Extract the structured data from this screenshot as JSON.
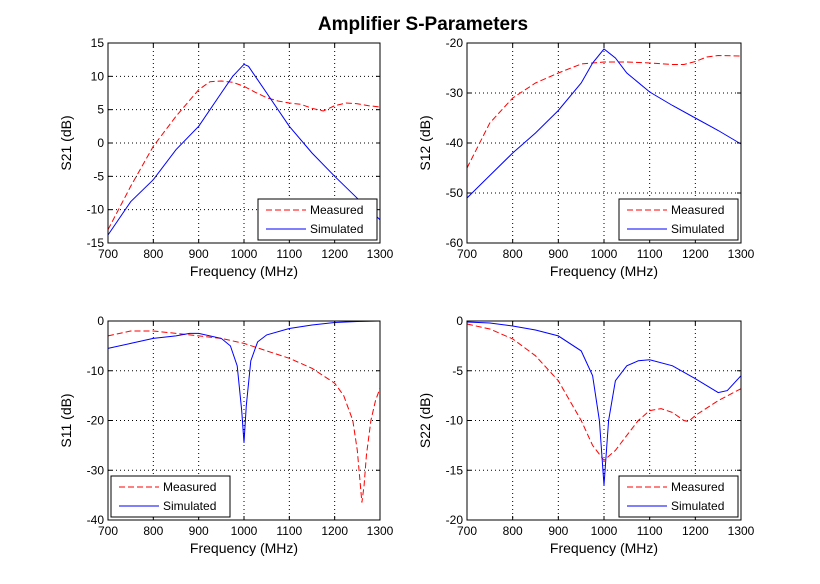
{
  "figure_title": "Amplifier S-Parameters",
  "colors": {
    "measured": "#ff0000",
    "simulated": "#0000ff",
    "axes": "#000000",
    "grid": "#000000"
  },
  "chart_data": [
    {
      "id": "s21",
      "type": "line",
      "xlabel": "Frequency (MHz)",
      "ylabel": "S21 (dB)",
      "xlim": [
        700,
        1300
      ],
      "ylim": [
        -15,
        15
      ],
      "xticks": [
        700,
        800,
        900,
        1000,
        1100,
        1200,
        1300
      ],
      "yticks": [
        -15,
        -10,
        -5,
        0,
        5,
        10,
        15
      ],
      "grid": true,
      "legend_location": "bottom-right",
      "series": [
        {
          "name": "Measured",
          "style": "dashed",
          "x": [
            700,
            750,
            800,
            850,
            900,
            925,
            950,
            975,
            1000,
            1025,
            1050,
            1075,
            1100,
            1125,
            1150,
            1175,
            1200,
            1225,
            1250,
            1275,
            1300
          ],
          "y": [
            -13,
            -6.5,
            -0.5,
            4,
            8,
            9.2,
            9.3,
            9.1,
            8.5,
            7.6,
            6.8,
            6.3,
            6,
            5.8,
            5.2,
            4.8,
            5.6,
            6,
            5.9,
            5.6,
            5.4
          ]
        },
        {
          "name": "Simulated",
          "style": "solid",
          "x": [
            700,
            750,
            800,
            850,
            900,
            950,
            975,
            1000,
            1010,
            1025,
            1050,
            1100,
            1150,
            1200,
            1250,
            1300
          ],
          "y": [
            -13.8,
            -8.8,
            -5.5,
            -1,
            2.5,
            7.5,
            10,
            11.8,
            11.5,
            10,
            7.5,
            2.5,
            -1.5,
            -5,
            -8.3,
            -11.5
          ]
        }
      ]
    },
    {
      "id": "s12",
      "type": "line",
      "xlabel": "Frequency (MHz)",
      "ylabel": "S12 (dB)",
      "xlim": [
        700,
        1300
      ],
      "ylim": [
        -60,
        -20
      ],
      "xticks": [
        700,
        800,
        900,
        1000,
        1100,
        1200,
        1300
      ],
      "yticks": [
        -60,
        -50,
        -40,
        -30,
        -20
      ],
      "grid": true,
      "legend_location": "bottom-right",
      "series": [
        {
          "name": "Measured",
          "style": "dashed",
          "x": [
            700,
            750,
            800,
            850,
            900,
            950,
            1000,
            1050,
            1100,
            1150,
            1175,
            1200,
            1225,
            1250,
            1300
          ],
          "y": [
            -45,
            -36,
            -31,
            -28,
            -26,
            -24.2,
            -23.8,
            -23.8,
            -24,
            -24.3,
            -24.3,
            -23.7,
            -22.8,
            -22.5,
            -22.6
          ]
        },
        {
          "name": "Simulated",
          "style": "solid",
          "x": [
            700,
            750,
            800,
            850,
            900,
            950,
            975,
            1000,
            1025,
            1050,
            1100,
            1150,
            1200,
            1250,
            1300
          ],
          "y": [
            -51,
            -46.5,
            -42,
            -38,
            -33.5,
            -28,
            -24,
            -21.2,
            -23,
            -26,
            -29.8,
            -32.5,
            -35,
            -37.5,
            -40.2
          ]
        }
      ]
    },
    {
      "id": "s11",
      "type": "line",
      "xlabel": "Frequency (MHz)",
      "ylabel": "S11 (dB)",
      "xlim": [
        700,
        1300
      ],
      "ylim": [
        -40,
        0
      ],
      "xticks": [
        700,
        800,
        900,
        1000,
        1100,
        1200,
        1300
      ],
      "yticks": [
        -40,
        -30,
        -20,
        -10,
        0
      ],
      "grid": true,
      "legend_location": "bottom-left",
      "series": [
        {
          "name": "Measured",
          "style": "dashed",
          "x": [
            700,
            750,
            800,
            850,
            900,
            950,
            1000,
            1050,
            1100,
            1150,
            1200,
            1220,
            1240,
            1250,
            1260,
            1265,
            1270,
            1280,
            1290,
            1300
          ],
          "y": [
            -3,
            -2,
            -2,
            -2.5,
            -3,
            -3.5,
            -4.5,
            -6,
            -7.5,
            -9.5,
            -12.5,
            -15,
            -20,
            -26,
            -36.5,
            -33,
            -27,
            -20,
            -16,
            -13.5
          ]
        },
        {
          "name": "Simulated",
          "style": "solid",
          "x": [
            700,
            750,
            800,
            850,
            880,
            900,
            950,
            970,
            985,
            995,
            1000,
            1005,
            1015,
            1030,
            1050,
            1100,
            1150,
            1200,
            1250,
            1300
          ],
          "y": [
            -5.5,
            -4.5,
            -3.5,
            -3,
            -2.5,
            -2.5,
            -3.5,
            -5,
            -9,
            -18,
            -24.5,
            -17,
            -8,
            -4.2,
            -2.8,
            -1.5,
            -0.8,
            -0.3,
            -0.1,
            0
          ]
        }
      ]
    },
    {
      "id": "s22",
      "type": "line",
      "xlabel": "Frequency (MHz)",
      "ylabel": "S22 (dB)",
      "xlim": [
        700,
        1300
      ],
      "ylim": [
        -20,
        0
      ],
      "xticks": [
        700,
        800,
        900,
        1000,
        1100,
        1200,
        1300
      ],
      "yticks": [
        -20,
        -15,
        -10,
        -5,
        0
      ],
      "grid": true,
      "legend_location": "bottom-right",
      "series": [
        {
          "name": "Measured",
          "style": "dashed",
          "x": [
            700,
            750,
            800,
            850,
            900,
            950,
            975,
            1000,
            1025,
            1050,
            1075,
            1100,
            1125,
            1150,
            1175,
            1185,
            1200,
            1250,
            1300
          ],
          "y": [
            -0.3,
            -0.8,
            -1.8,
            -3.5,
            -6,
            -10,
            -12.5,
            -14,
            -13,
            -11.5,
            -10,
            -9,
            -8.8,
            -9.2,
            -10,
            -10.1,
            -9.5,
            -8,
            -6.8
          ]
        },
        {
          "name": "Simulated",
          "style": "solid",
          "x": [
            700,
            750,
            800,
            850,
            900,
            950,
            975,
            990,
            1000,
            1010,
            1025,
            1050,
            1075,
            1100,
            1150,
            1200,
            1250,
            1270,
            1300
          ],
          "y": [
            -0.1,
            -0.2,
            -0.5,
            -0.9,
            -1.5,
            -3,
            -5.5,
            -10,
            -16.5,
            -10,
            -6,
            -4.5,
            -4,
            -3.9,
            -4.5,
            -5.8,
            -7.2,
            -7,
            -5.5
          ]
        }
      ]
    }
  ]
}
